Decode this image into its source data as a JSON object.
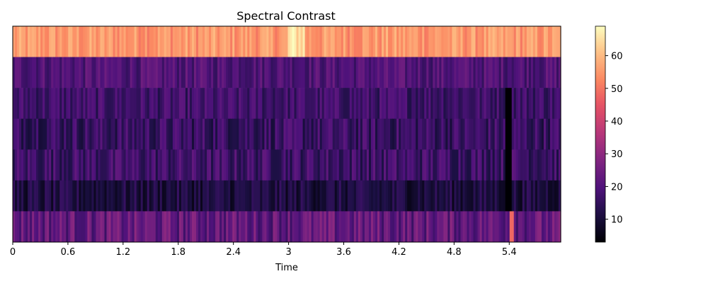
{
  "chart_data": {
    "type": "heatmap",
    "title": "Spectral Contrast",
    "xlabel": "Time",
    "ylabel": "",
    "colormap": "magma",
    "xlim": [
      0,
      5.96
    ],
    "x_ticks": [
      0,
      0.6,
      1.2,
      1.8,
      2.4,
      3.0,
      3.6,
      4.2,
      4.8,
      5.4
    ],
    "x_tick_labels": [
      "0",
      "0.6",
      "1.2",
      "1.8",
      "2.4",
      "3",
      "3.6",
      "4.2",
      "4.8",
      "5.4"
    ],
    "n_bands": 7,
    "n_frames": 257,
    "colorbar": {
      "range": [
        3,
        69
      ],
      "ticks": [
        10,
        20,
        30,
        40,
        50,
        60
      ],
      "tick_labels": [
        "10",
        "20",
        "30",
        "40",
        "50",
        "60"
      ]
    },
    "bands_top_to_bottom": [
      {
        "band": 6,
        "mean": 55,
        "spread": 5
      },
      {
        "band": 5,
        "mean": 20,
        "spread": 5
      },
      {
        "band": 4,
        "mean": 17,
        "spread": 5
      },
      {
        "band": 3,
        "mean": 16,
        "spread": 6
      },
      {
        "band": 2,
        "mean": 17,
        "spread": 6
      },
      {
        "band": 1,
        "mean": 11,
        "spread": 5
      },
      {
        "band": 0,
        "mean": 23,
        "spread": 7
      }
    ],
    "grid": false,
    "legend": "colorbar-right"
  }
}
